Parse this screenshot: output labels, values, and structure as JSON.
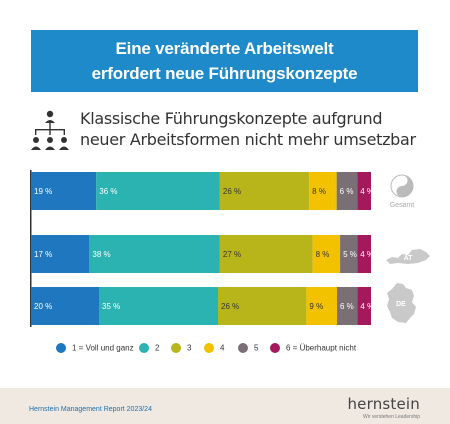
{
  "banner": {
    "line1": "Eine veränderte Arbeitswelt",
    "line2": "erfordert neue Führungskonzepte"
  },
  "subtitle": {
    "line1": "Klassische Führungskonzepte aufgrund",
    "line2": "neuer Arbeitsformen nicht mehr umsetzbar"
  },
  "icons": {
    "org": "org-chart-icon",
    "gesamt": "yin-yang-icon",
    "at": "austria-map-icon",
    "de": "germany-map-icon"
  },
  "colors": {
    "1": "#1f77bf",
    "2": "#2ab3b0",
    "3": "#b8b51a",
    "4": "#f2c200",
    "5": "#7a6f74",
    "6": "#a3195b",
    "banner": "#1f8ac9",
    "footer": "#efe9e1"
  },
  "chart_data": {
    "type": "bar",
    "orientation": "horizontal-stacked",
    "categories": [
      "Gesamt",
      "AT",
      "DE"
    ],
    "series": [
      {
        "name": "1 = Voll und ganz",
        "values": [
          19,
          17,
          20
        ]
      },
      {
        "name": "2",
        "values": [
          36,
          38,
          35
        ]
      },
      {
        "name": "3",
        "values": [
          26,
          27,
          26
        ]
      },
      {
        "name": "4",
        "values": [
          8,
          8,
          9
        ]
      },
      {
        "name": "5",
        "values": [
          6,
          5,
          6
        ]
      },
      {
        "name": "6 = Überhaupt nicht",
        "values": [
          4,
          4,
          4
        ]
      }
    ],
    "value_suffix": " %",
    "legend_position": "bottom"
  },
  "legend": [
    {
      "key": "1",
      "label": "1 = Voll und ganz"
    },
    {
      "key": "2",
      "label": "2"
    },
    {
      "key": "3",
      "label": "3"
    },
    {
      "key": "4",
      "label": "4"
    },
    {
      "key": "5",
      "label": "5"
    },
    {
      "key": "6",
      "label": "6 = Überhaupt nicht"
    }
  ],
  "footer": {
    "report": "Hernstein Management Report 2023/24",
    "logo": "hernstein",
    "tagline": "Wir verstehen Leadership"
  }
}
